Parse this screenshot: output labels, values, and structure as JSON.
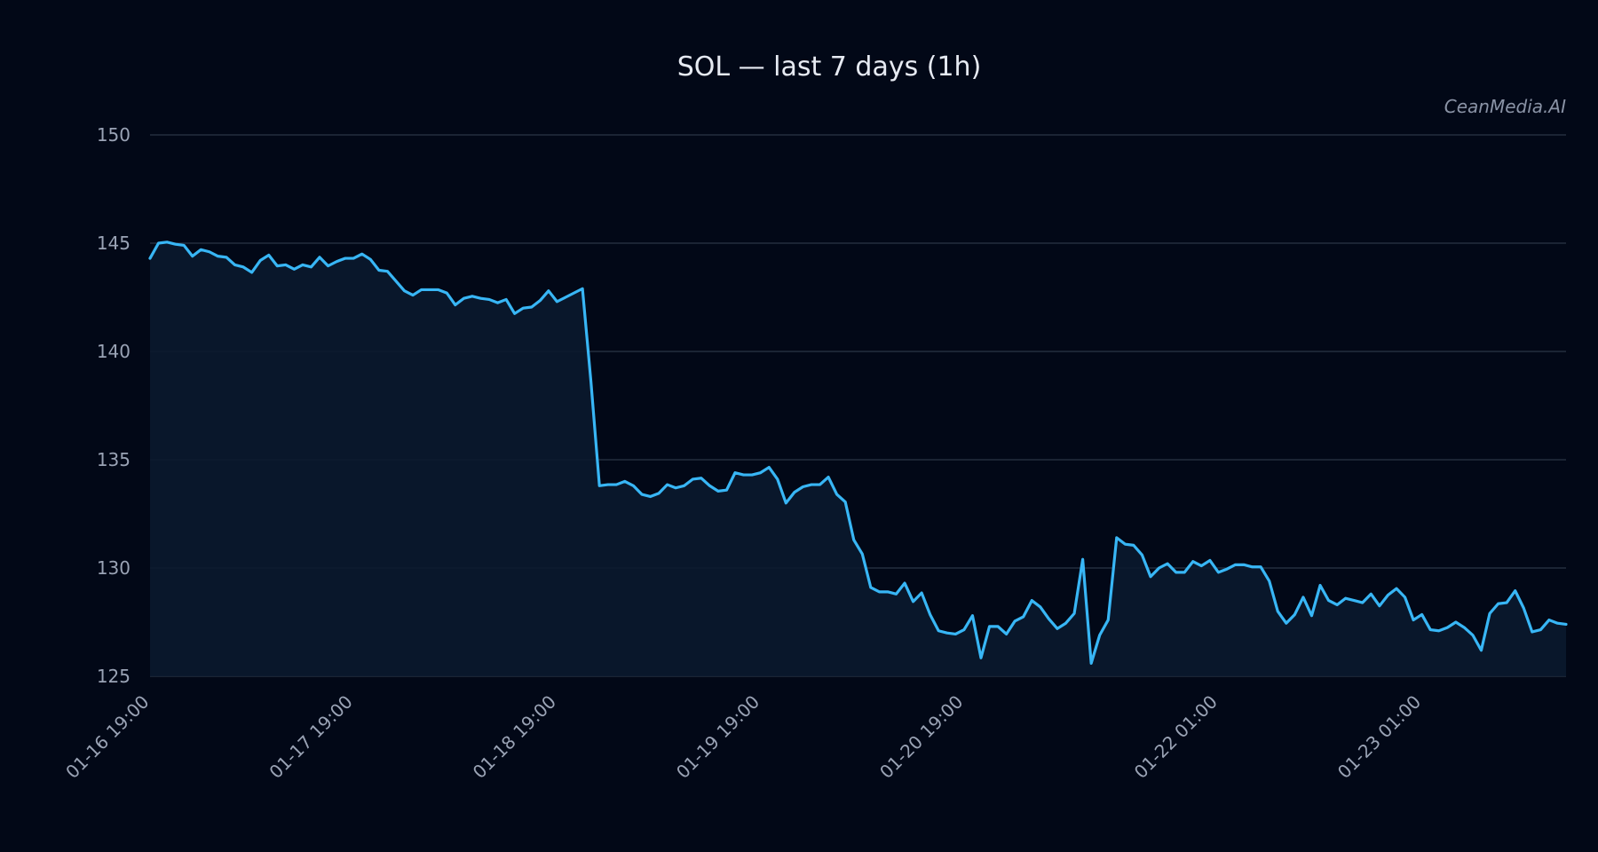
{
  "chart_data": {
    "type": "line",
    "title": "SOL — last 7 days (1h)",
    "watermark": "CeanMedia.AI",
    "xlabel": "",
    "ylabel": "",
    "ylim": [
      125,
      150
    ],
    "yticks": [
      125,
      130,
      135,
      140,
      145,
      150
    ],
    "xticks": [
      "01-16 19:00",
      "01-17 19:00",
      "01-18 19:00",
      "01-19 19:00",
      "01-20 19:00",
      "01-22 01:00",
      "01-23 01:00"
    ],
    "xtick_hours": [
      0,
      24,
      48,
      72,
      96,
      126,
      150
    ],
    "x_hours_max": 167,
    "grid": true,
    "area_fill": true,
    "colors": {
      "line": "#38b6f5",
      "area": "#0a1a2e",
      "grid": "#2b3546",
      "background": "#020817"
    },
    "series": [
      {
        "values": [
          144.3,
          145.0,
          145.05,
          144.95,
          144.9,
          144.4,
          144.7,
          144.6,
          144.4,
          144.35,
          144.0,
          143.9,
          143.65,
          144.2,
          144.45,
          143.95,
          144.0,
          143.8,
          144.0,
          143.9,
          144.35,
          143.95,
          144.15,
          144.3,
          144.3,
          144.5,
          144.25,
          143.75,
          143.7,
          143.25,
          142.8,
          142.6,
          142.85,
          142.85,
          142.85,
          142.7,
          142.15,
          142.45,
          142.55,
          142.45,
          142.4,
          142.25,
          142.4,
          141.75,
          142.0,
          142.05,
          142.35,
          142.8,
          142.3,
          142.5,
          142.7,
          142.9,
          138.6,
          133.8,
          133.85,
          133.85,
          134.0,
          133.8,
          133.4,
          133.3,
          133.45,
          133.85,
          133.7,
          133.8,
          134.1,
          134.15,
          133.8,
          133.55,
          133.6,
          134.4,
          134.3,
          134.3,
          134.4,
          134.65,
          134.1,
          133.0,
          133.5,
          133.75,
          133.85,
          133.85,
          134.2,
          133.4,
          133.05,
          131.3,
          130.65,
          129.1,
          128.9,
          128.9,
          128.8,
          129.3,
          128.45,
          128.85,
          127.85,
          127.1,
          127.0,
          126.95,
          127.15,
          127.8,
          125.85,
          127.3,
          127.3,
          126.95,
          127.55,
          127.75,
          128.5,
          128.2,
          127.65,
          127.2,
          127.45,
          127.9,
          130.4,
          125.6,
          126.9,
          127.6,
          131.4,
          131.1,
          131.05,
          130.6,
          129.6,
          130.0,
          130.2,
          129.8,
          129.8,
          130.3,
          130.1,
          130.35,
          129.8,
          129.95,
          130.15,
          130.15,
          130.05,
          130.05,
          129.4,
          128.0,
          127.45,
          127.85,
          128.65,
          127.8,
          129.2,
          128.5,
          128.3,
          128.6,
          128.5,
          128.4,
          128.8,
          128.25,
          128.75,
          129.05,
          128.65,
          127.6,
          127.85,
          127.15,
          127.1,
          127.25,
          127.5,
          127.25,
          126.9,
          126.2,
          127.9,
          128.35,
          128.4,
          128.95,
          128.15,
          127.05,
          127.15,
          127.6,
          127.45,
          127.4
        ]
      }
    ]
  }
}
